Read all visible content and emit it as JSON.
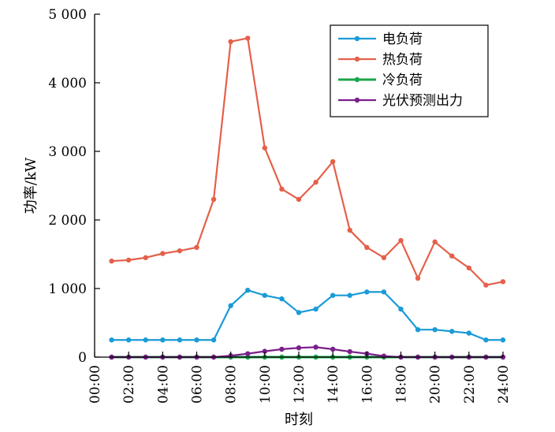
{
  "chart_data": {
    "type": "line",
    "xlabel": "时刻",
    "ylabel": "功率/kW",
    "ylim": [
      0,
      5000
    ],
    "yticks": [
      {
        "value": 0,
        "label": "0"
      },
      {
        "value": 1000,
        "label": "1 000"
      },
      {
        "value": 2000,
        "label": "2 000"
      },
      {
        "value": 3000,
        "label": "3 000"
      },
      {
        "value": 4000,
        "label": "4 000"
      },
      {
        "value": 5000,
        "label": "5 000"
      }
    ],
    "xlim": [
      0,
      24
    ],
    "xticks": [
      {
        "value": 0,
        "label": "00:00"
      },
      {
        "value": 2,
        "label": "02:00"
      },
      {
        "value": 4,
        "label": "04:00"
      },
      {
        "value": 6,
        "label": "06:00"
      },
      {
        "value": 8,
        "label": "08:00"
      },
      {
        "value": 10,
        "label": "10:00"
      },
      {
        "value": 12,
        "label": "12:00"
      },
      {
        "value": 14,
        "label": "14:00"
      },
      {
        "value": 16,
        "label": "16:00"
      },
      {
        "value": 18,
        "label": "18:00"
      },
      {
        "value": 20,
        "label": "20:00"
      },
      {
        "value": 22,
        "label": "22:00"
      },
      {
        "value": 24,
        "label": "24:00"
      }
    ],
    "x": [
      1,
      2,
      3,
      4,
      5,
      6,
      7,
      8,
      9,
      10,
      11,
      12,
      13,
      14,
      15,
      16,
      17,
      18,
      19,
      20,
      21,
      22,
      23,
      24
    ],
    "series": [
      {
        "name": "电负荷",
        "color": "#1a9bd7",
        "values": [
          250,
          250,
          250,
          250,
          250,
          250,
          250,
          750,
          975,
          900,
          850,
          650,
          700,
          900,
          900,
          950,
          950,
          700,
          400,
          400,
          375,
          350,
          250,
          250
        ]
      },
      {
        "name": "热负荷",
        "color": "#e5604a",
        "values": [
          1400,
          1415,
          1450,
          1510,
          1550,
          1600,
          2300,
          4600,
          4650,
          3050,
          2450,
          2300,
          2550,
          2850,
          1850,
          1600,
          1450,
          1700,
          1150,
          1680,
          1475,
          1300,
          1050,
          1100
        ]
      },
      {
        "name": "冷负荷",
        "color": "#1aa64a",
        "values": [
          0,
          0,
          0,
          0,
          0,
          0,
          0,
          0,
          0,
          0,
          0,
          0,
          0,
          0,
          0,
          0,
          0,
          0,
          0,
          0,
          0,
          0,
          0,
          0
        ]
      },
      {
        "name": "光伏预测出力",
        "color": "#7b1f8a",
        "values": [
          0,
          0,
          0,
          0,
          0,
          0,
          0,
          20,
          50,
          85,
          115,
          135,
          145,
          115,
          80,
          50,
          15,
          0,
          0,
          0,
          0,
          0,
          0,
          0
        ]
      }
    ],
    "legend_position": "top-right",
    "grid": false
  }
}
